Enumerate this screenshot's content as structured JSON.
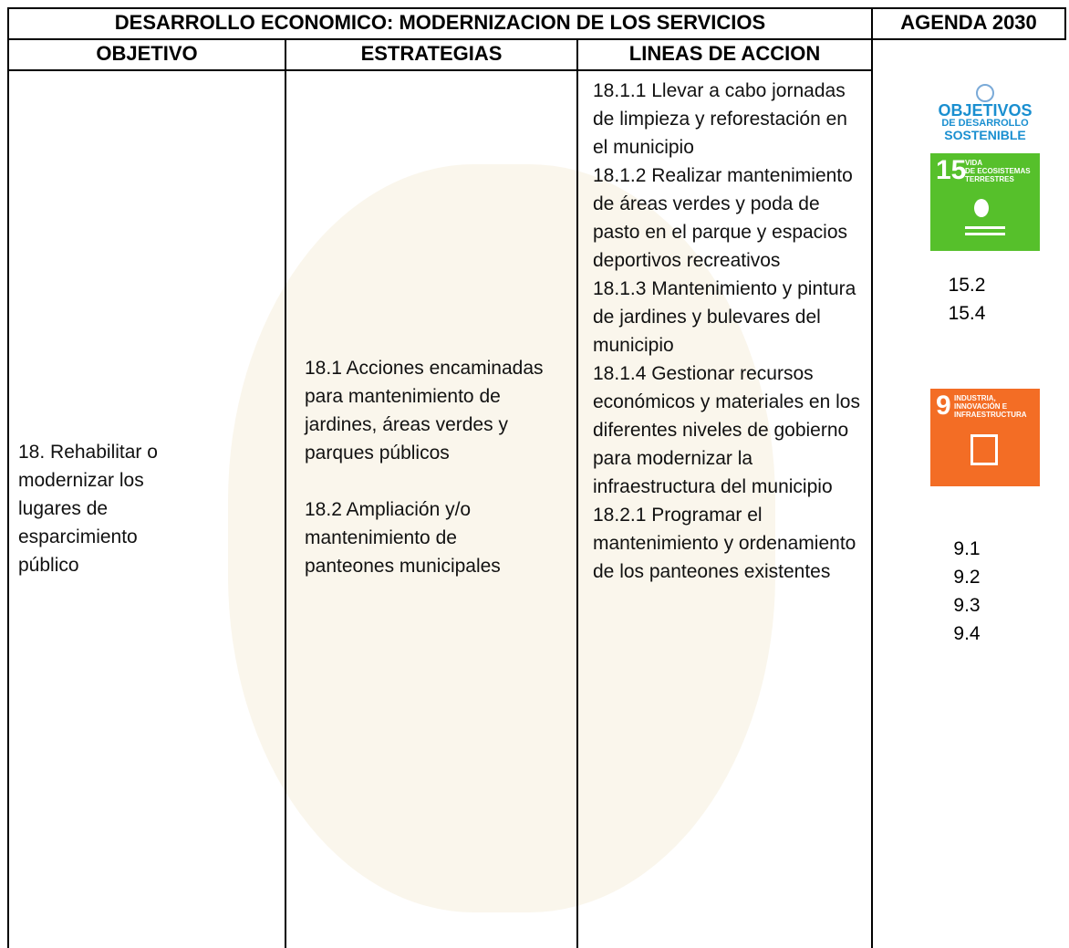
{
  "header": {
    "title": "DESARROLLO ECONOMICO: MODERNIZACION DE LOS SERVICIOS",
    "agenda": "AGENDA 2030"
  },
  "columns": [
    "OBJETIVO",
    "ESTRATEGIAS",
    "LINEAS DE ACCION"
  ],
  "objective": "18. Rehabilitar o modernizar los lugares de esparcimiento público",
  "strategies": [
    "18.1 Acciones encaminadas para mantenimiento de jardines, áreas verdes y parques públicos",
    "18.2 Ampliación y/o mantenimiento de panteones municipales"
  ],
  "action_lines": [
    "18.1.1 Llevar a cabo jornadas de limpieza y reforestación en el municipio",
    "18.1.2 Realizar mantenimiento de áreas verdes y poda de pasto en el parque y espacios deportivos recreativos",
    "18.1.3 Mantenimiento y pintura de jardines y bulevares del municipio",
    "18.1.4 Gestionar recursos económicos y materiales en los diferentes niveles de gobierno para modernizar la infraestructura del municipio",
    "18.2.1 Programar el mantenimiento y ordenamiento de los panteones existentes"
  ],
  "agenda": {
    "logo": [
      "OBJETIVOS",
      "DE DESARROLLO",
      "SOSTENIBLE"
    ],
    "goals": [
      {
        "number": "15",
        "name": [
          "VIDA",
          "DE ECOSISTEMAS",
          "TERRESTRES"
        ],
        "targets": [
          "15.2",
          "15.4"
        ]
      },
      {
        "number": "9",
        "name": [
          "INDUSTRIA,",
          "INNOVACIÓN E",
          "INFRAESTRUCTURA"
        ],
        "targets": [
          "9.1",
          "9.2",
          "9.3",
          "9.4"
        ]
      }
    ]
  }
}
